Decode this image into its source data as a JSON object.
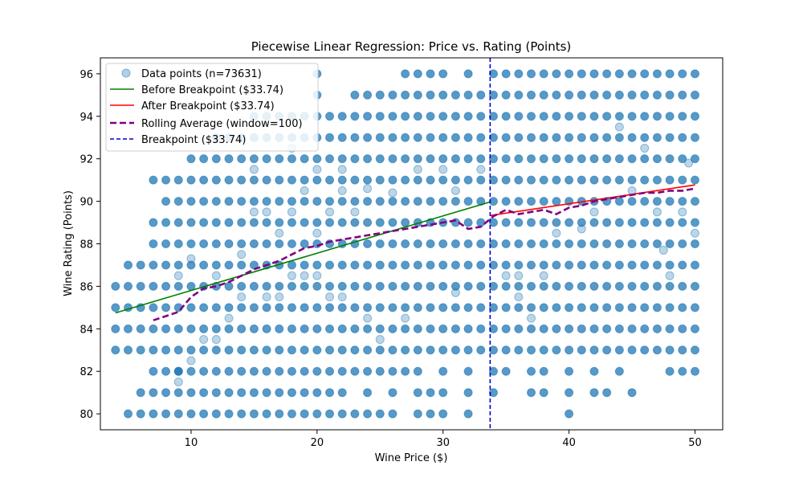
{
  "chart_data": {
    "type": "scatter",
    "title": "Piecewise Linear Regression: Price vs. Rating (Points)",
    "xlabel": "Wine Price ($)",
    "ylabel": "Wine Rating (Points)",
    "xlim": [
      2.8,
      52.2
    ],
    "ylim": [
      79.25,
      96.75
    ],
    "xticks": [
      10,
      20,
      30,
      40,
      50
    ],
    "yticks": [
      80,
      82,
      84,
      86,
      88,
      90,
      92,
      94,
      96
    ],
    "grid": false,
    "legend_position": "top-left",
    "legend": [
      {
        "key": "points",
        "label": "Data points (n=73631)"
      },
      {
        "key": "before",
        "label": "Before Breakpoint ($33.74)"
      },
      {
        "key": "after",
        "label": "After Breakpoint ($33.74)"
      },
      {
        "key": "rolling",
        "label": "Rolling Average (window=100)"
      },
      {
        "key": "breakpoint",
        "label": "Breakpoint ($33.74)"
      }
    ],
    "colors": {
      "points": "#1f77b4",
      "before": "#008000",
      "after": "#ff0000",
      "rolling": "#800080",
      "breakpoint": "#0000cc"
    },
    "breakpoint": 33.74,
    "segments": [
      {
        "name": "Before Breakpoint ($33.74)",
        "x": [
          4,
          33.74
        ],
        "y": [
          84.75,
          89.97
        ]
      },
      {
        "name": "After Breakpoint ($33.74)",
        "x": [
          33.74,
          50
        ],
        "y": [
          89.33,
          90.77
        ]
      }
    ],
    "rolling_average": {
      "x": [
        7,
        8,
        9,
        10,
        11,
        12,
        13,
        14,
        15,
        16,
        17,
        18,
        19,
        20,
        21,
        22,
        23,
        24,
        25,
        26,
        27,
        28,
        29,
        30,
        31,
        32,
        33,
        34,
        35,
        36,
        37,
        38,
        39,
        40,
        41,
        42,
        43,
        44,
        45,
        46,
        47,
        48,
        49,
        50
      ],
      "y": [
        84.4,
        84.6,
        84.8,
        85.5,
        85.9,
        86.0,
        86.2,
        86.5,
        86.8,
        87.0,
        87.2,
        87.5,
        87.8,
        87.9,
        88.1,
        88.2,
        88.3,
        88.4,
        88.5,
        88.6,
        88.7,
        88.8,
        88.9,
        89.0,
        89.1,
        88.7,
        88.8,
        89.3,
        89.6,
        89.4,
        89.5,
        89.6,
        89.4,
        89.7,
        89.8,
        90.0,
        90.1,
        90.2,
        90.3,
        90.4,
        90.4,
        90.5,
        90.5,
        90.6
      ]
    },
    "scatter": {
      "dense_rows": [
        {
          "y": 80,
          "x_min": 5,
          "x_max": 21,
          "extra_x": [
            22,
            23,
            24,
            25,
            26,
            28,
            29,
            30,
            32,
            40
          ]
        },
        {
          "y": 81,
          "x_min": 6,
          "x_max": 22,
          "extra_x": [
            24,
            26,
            28,
            29,
            30,
            32,
            34,
            37,
            38,
            40,
            42,
            43,
            45
          ]
        },
        {
          "y": 82,
          "x_min": 7,
          "x_max": 28,
          "extra_x": [
            9,
            30,
            32,
            34,
            35,
            37,
            38,
            40,
            42,
            44,
            48,
            49,
            50
          ]
        },
        {
          "y": 83,
          "x_min": 7,
          "x_max": 50,
          "extra_x": [
            4,
            5,
            6
          ]
        },
        {
          "y": 84,
          "x_min": 5,
          "x_max": 50,
          "extra_x": [
            4
          ]
        },
        {
          "y": 85,
          "x_min": 5,
          "x_max": 50,
          "extra_x": [
            4
          ]
        },
        {
          "y": 86,
          "x_min": 5,
          "x_max": 50,
          "extra_x": [
            4
          ]
        },
        {
          "y": 87,
          "x_min": 5,
          "x_max": 50,
          "extra_x": []
        },
        {
          "y": 88,
          "x_min": 7,
          "x_max": 50,
          "extra_x": []
        },
        {
          "y": 89,
          "x_min": 7,
          "x_max": 50,
          "extra_x": []
        },
        {
          "y": 90,
          "x_min": 8,
          "x_max": 50,
          "extra_x": []
        },
        {
          "y": 91,
          "x_min": 10,
          "x_max": 50,
          "extra_x": [
            7,
            8,
            9
          ]
        },
        {
          "y": 92,
          "x_min": 11,
          "x_max": 50,
          "extra_x": [
            10
          ]
        },
        {
          "y": 93,
          "x_min": 13,
          "x_max": 50,
          "extra_x": [
            12
          ]
        },
        {
          "y": 94,
          "x_min": 16,
          "x_max": 50,
          "extra_x": [
            15
          ]
        },
        {
          "y": 95,
          "x_min": 24,
          "x_max": 50,
          "extra_x": [
            20,
            23
          ]
        },
        {
          "y": 96,
          "x_min": 34,
          "x_max": 50,
          "extra_x": [
            20,
            27,
            28,
            29,
            30,
            32
          ]
        }
      ],
      "scattered_points": [
        [
          9,
          81.5
        ],
        [
          10,
          82.5
        ],
        [
          11,
          83.5
        ],
        [
          12,
          83.5
        ],
        [
          13,
          84.5
        ],
        [
          14,
          85.5
        ],
        [
          16,
          85.5
        ],
        [
          17,
          85.5
        ],
        [
          18,
          86.5
        ],
        [
          19,
          86.5
        ],
        [
          20,
          86.5
        ],
        [
          21,
          85.5
        ],
        [
          22,
          85.5
        ],
        [
          24,
          84.5
        ],
        [
          25,
          83.5
        ],
        [
          27,
          84.5
        ],
        [
          9,
          86.5
        ],
        [
          10,
          87.3
        ],
        [
          12,
          86.5
        ],
        [
          14,
          87.5
        ],
        [
          15,
          89.5
        ],
        [
          16,
          89.5
        ],
        [
          17,
          88.5
        ],
        [
          18,
          89.5
        ],
        [
          19,
          90.5
        ],
        [
          20,
          88.5
        ],
        [
          21,
          89.5
        ],
        [
          22,
          90.5
        ],
        [
          23,
          89.5
        ],
        [
          24,
          90.6
        ],
        [
          26,
          90.4
        ],
        [
          15,
          91.5
        ],
        [
          18,
          92.5
        ],
        [
          20,
          91.5
        ],
        [
          22,
          91.5
        ],
        [
          28,
          91.5
        ],
        [
          30,
          91.5
        ],
        [
          31,
          90.5
        ],
        [
          33,
          91.5
        ],
        [
          35,
          86.5
        ],
        [
          36,
          85.5
        ],
        [
          37,
          84.5
        ],
        [
          38,
          86.5
        ],
        [
          39,
          88.5
        ],
        [
          41,
          88.7
        ],
        [
          42,
          89.5
        ],
        [
          44,
          93.5
        ],
        [
          45,
          90.5
        ],
        [
          46,
          92.5
        ],
        [
          47,
          89.5
        ],
        [
          47.5,
          87.7
        ],
        [
          48,
          86.5
        ],
        [
          49,
          89.5
        ],
        [
          49.5,
          91.8
        ],
        [
          50,
          88.5
        ],
        [
          31,
          85.7
        ],
        [
          36,
          86.5
        ]
      ]
    }
  }
}
